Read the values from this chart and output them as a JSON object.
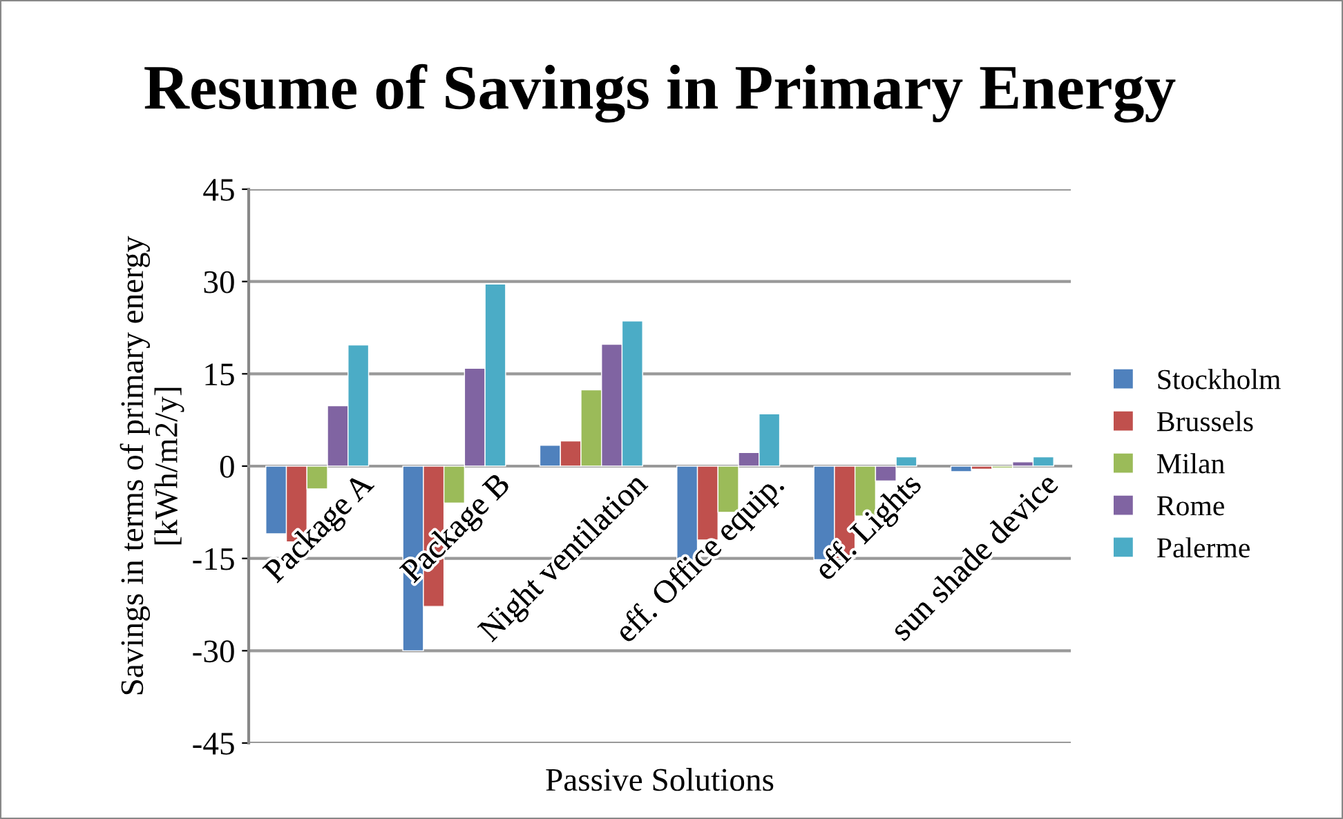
{
  "chart_data": {
    "type": "bar",
    "title": "Resume of Savings in Primary Energy",
    "xlabel": "Passive Solutions",
    "ylabel": "Savings in terms of primary energy\n[kWh/m2/y]",
    "categories": [
      "Package A",
      "Package B",
      "Night ventilation",
      "eff. Office equip.",
      "eff. Lights",
      "sun shade device"
    ],
    "series": [
      {
        "name": "Stockholm",
        "color": "#4f81bd",
        "values": [
          -11,
          -30,
          3.4,
          -16.6,
          -15.2,
          -0.9
        ]
      },
      {
        "name": "Brussels",
        "color": "#c0504d",
        "values": [
          -12.3,
          -22.8,
          4.1,
          -12,
          -15,
          -0.5
        ]
      },
      {
        "name": "Milan",
        "color": "#9bbb59",
        "values": [
          -3.7,
          -6,
          12.4,
          -7.5,
          -8.1,
          -0.3
        ]
      },
      {
        "name": "Rome",
        "color": "#8064a2",
        "values": [
          9.8,
          15.9,
          19.8,
          2.2,
          -2.4,
          0.7
        ]
      },
      {
        "name": "Palerme",
        "color": "#4bacc6",
        "values": [
          19.7,
          29.6,
          23.6,
          8.5,
          1.5,
          1.5
        ]
      }
    ],
    "ylim": [
      -45,
      45
    ],
    "yticks": [
      -45,
      -30,
      -15,
      0,
      15,
      30,
      45
    ],
    "grid": "y",
    "legend": "right"
  }
}
